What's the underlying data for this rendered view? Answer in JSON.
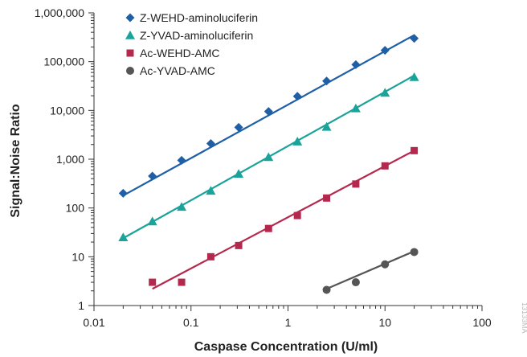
{
  "chart_data": {
    "type": "scatter",
    "x_scale": "log",
    "y_scale": "log",
    "xlabel": "Caspase Concentration (U/ml)",
    "ylabel": "Signal:Noise Ratio",
    "xlim": [
      0.01,
      100
    ],
    "ylim": [
      1,
      1000000
    ],
    "x_ticks": [
      0.01,
      0.1,
      1,
      10,
      100
    ],
    "x_tick_labels": [
      "0.01",
      "0.1",
      "1",
      "10",
      "100"
    ],
    "y_ticks": [
      1,
      10,
      100,
      1000,
      10000,
      100000,
      1000000
    ],
    "y_tick_labels": [
      "1",
      "10",
      "100",
      "1,000",
      "10,000",
      "100,000",
      "1,000,000"
    ],
    "grid": false,
    "legend_position": "top-left",
    "series": [
      {
        "name": "Z-WEHD-aminoluciferin",
        "marker": "diamond",
        "color": "#1f5fa6",
        "points": [
          [
            0.02,
            200
          ],
          [
            0.04,
            450
          ],
          [
            0.08,
            950
          ],
          [
            0.16,
            2100
          ],
          [
            0.31,
            4500
          ],
          [
            0.63,
            9500
          ],
          [
            1.25,
            19500
          ],
          [
            2.5,
            40000
          ],
          [
            5,
            87000
          ],
          [
            10,
            170000
          ],
          [
            20,
            300000
          ]
        ],
        "fit": [
          [
            0.02,
            180
          ],
          [
            20,
            350000
          ]
        ]
      },
      {
        "name": "Z-YVAD-aminoluciferin",
        "marker": "triangle",
        "color": "#1aa39a",
        "points": [
          [
            0.02,
            25
          ],
          [
            0.04,
            53
          ],
          [
            0.08,
            105
          ],
          [
            0.16,
            225
          ],
          [
            0.31,
            500
          ],
          [
            0.63,
            1100
          ],
          [
            1.25,
            2300
          ],
          [
            2.5,
            4600
          ],
          [
            5,
            11000
          ],
          [
            10,
            23000
          ],
          [
            20,
            48000
          ]
        ],
        "fit": [
          [
            0.02,
            24
          ],
          [
            20,
            52000
          ]
        ]
      },
      {
        "name": "Ac-WEHD-AMC",
        "marker": "square",
        "color": "#b5284d",
        "points": [
          [
            0.04,
            3
          ],
          [
            0.08,
            3
          ],
          [
            0.16,
            10
          ],
          [
            0.31,
            17
          ],
          [
            0.63,
            38
          ],
          [
            1.25,
            70
          ],
          [
            2.5,
            160
          ],
          [
            5,
            310
          ],
          [
            10,
            730
          ],
          [
            20,
            1500
          ]
        ],
        "fit": [
          [
            0.04,
            2.2
          ],
          [
            20,
            1500
          ]
        ]
      },
      {
        "name": "Ac-YVAD-AMC",
        "marker": "circle",
        "color": "#555555",
        "points": [
          [
            2.5,
            2.1
          ],
          [
            5,
            3
          ],
          [
            10,
            7
          ],
          [
            20,
            12.5
          ]
        ],
        "fit": [
          [
            2.5,
            2.2
          ],
          [
            20,
            13
          ]
        ]
      }
    ],
    "side_code": "13133MA"
  }
}
